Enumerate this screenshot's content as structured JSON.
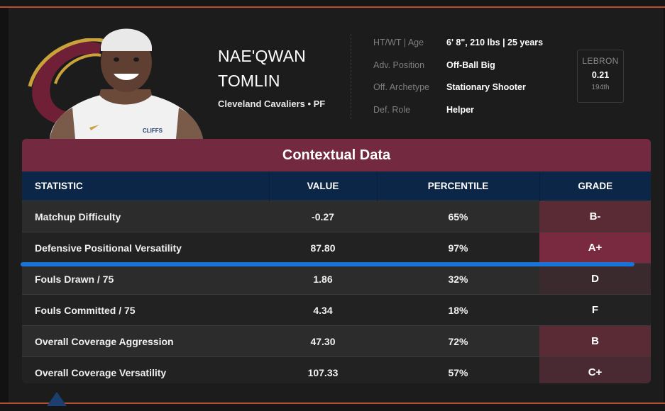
{
  "player": {
    "first_name": "NAE'QWAN",
    "last_name": "TOMLIN",
    "team_position": "Cleveland Cavaliers • PF",
    "jersey_sponsor": "CLIFFS"
  },
  "info": [
    {
      "key": "HT/WT | Age",
      "value": "6' 8\", 210 lbs | 25 years"
    },
    {
      "key": "Adv. Position",
      "value": "Off-Ball Big"
    },
    {
      "key": "Off. Archetype",
      "value": "Stationary Shooter"
    },
    {
      "key": "Def. Role",
      "value": "Helper"
    }
  ],
  "lebron": {
    "label": "LEBRON",
    "value": "0.21",
    "rank": "194th"
  },
  "panel": {
    "title": "Contextual Data",
    "headers": {
      "statistic": "STATISTIC",
      "value": "VALUE",
      "percentile": "PERCENTILE",
      "grade": "GRADE"
    },
    "rows": [
      {
        "statistic": "Matchup Difficulty",
        "value": "-0.27",
        "percentile": "65%",
        "grade": "B-",
        "grade_color": "#5a2a35"
      },
      {
        "statistic": "Defensive Positional Versatility",
        "value": "87.80",
        "percentile": "97%",
        "grade": "A+",
        "grade_color": "#7a2a40"
      },
      {
        "statistic": "Fouls Drawn / 75",
        "value": "1.86",
        "percentile": "32%",
        "grade": "D",
        "grade_color": "#3a2a2e"
      },
      {
        "statistic": "Fouls Committed / 75",
        "value": "4.34",
        "percentile": "18%",
        "grade": "F",
        "grade_color": "#222222"
      },
      {
        "statistic": "Overall Coverage Aggression",
        "value": "47.30",
        "percentile": "72%",
        "grade": "B",
        "grade_color": "#5a2a35"
      },
      {
        "statistic": "Overall Coverage Versatility",
        "value": "107.33",
        "percentile": "57%",
        "grade": "C+",
        "grade_color": "#4a2a32"
      }
    ]
  },
  "colors": {
    "accent": "#73293f",
    "header_navy": "#0c2648",
    "highlight_line": "#1a73d6",
    "frame_orange": "#b5502a"
  }
}
